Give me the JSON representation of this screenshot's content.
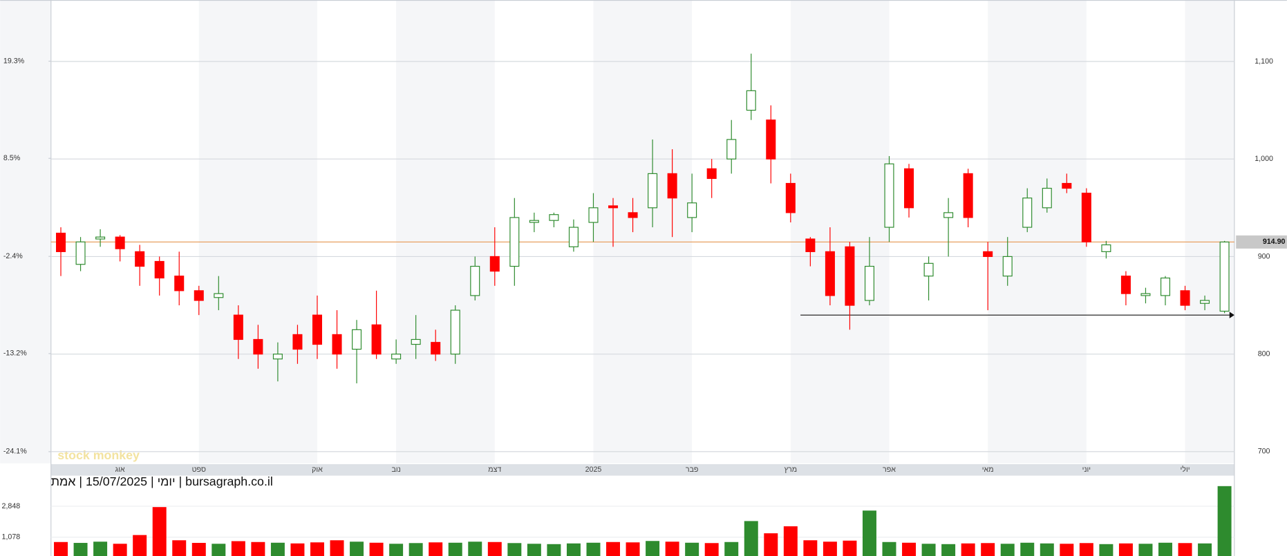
{
  "chart_data": {
    "type": "candlestick",
    "subtitle": "יומי | 15/07/2025 | אמת | bursagraph.co.il",
    "watermark": "stock monkey",
    "categories": [
      null,
      null,
      null,
      "אוג",
      null,
      null,
      null,
      "ספט",
      null,
      null,
      null,
      null,
      null,
      "אוק",
      null,
      null,
      null,
      "נוב",
      null,
      null,
      null,
      null,
      "דצמ",
      null,
      null,
      null,
      null,
      "2025",
      null,
      null,
      null,
      null,
      "פבר",
      null,
      null,
      null,
      null,
      "מרץ",
      null,
      null,
      null,
      null,
      "אפר",
      null,
      null,
      null,
      null,
      "מאי",
      null,
      null,
      null,
      null,
      "יוני",
      null,
      null,
      null,
      null,
      "יולי",
      null,
      null
    ],
    "open": [
      924,
      892,
      918,
      920,
      905,
      895,
      880,
      865,
      858,
      840,
      815,
      795,
      820,
      840,
      820,
      805,
      830,
      795,
      810,
      812,
      800,
      860,
      900,
      890,
      935,
      937,
      910,
      935,
      952,
      945,
      950,
      985,
      940,
      990,
      1000,
      1050,
      1040,
      975,
      918,
      905,
      910,
      855,
      930,
      990,
      880,
      940,
      985,
      905,
      880,
      930,
      950,
      975,
      965,
      905,
      880,
      860,
      860,
      865,
      852,
      844
    ],
    "high": [
      930,
      920,
      928,
      922,
      912,
      900,
      905,
      870,
      880,
      850,
      830,
      812,
      830,
      860,
      845,
      835,
      865,
      815,
      840,
      825,
      850,
      900,
      930,
      960,
      945,
      945,
      938,
      965,
      960,
      960,
      1020,
      1010,
      985,
      1000,
      1040,
      1108,
      1055,
      985,
      920,
      930,
      915,
      920,
      1003,
      995,
      900,
      960,
      990,
      915,
      920,
      970,
      980,
      985,
      970,
      916,
      885,
      868,
      880,
      870,
      860,
      916
    ],
    "low": [
      880,
      885,
      910,
      895,
      870,
      860,
      850,
      840,
      845,
      795,
      785,
      772,
      790,
      795,
      785,
      770,
      795,
      790,
      795,
      793,
      790,
      855,
      870,
      870,
      925,
      930,
      905,
      915,
      910,
      925,
      930,
      920,
      925,
      960,
      985,
      1040,
      975,
      935,
      890,
      850,
      825,
      850,
      915,
      940,
      855,
      900,
      930,
      845,
      870,
      925,
      945,
      965,
      910,
      898,
      850,
      852,
      850,
      845,
      845,
      842
    ],
    "close": [
      905,
      915,
      920,
      908,
      890,
      878,
      865,
      855,
      862,
      815,
      800,
      800,
      805,
      810,
      800,
      825,
      800,
      800,
      815,
      800,
      845,
      890,
      885,
      940,
      937,
      943,
      930,
      950,
      950,
      940,
      985,
      960,
      955,
      980,
      1020,
      1070,
      1000,
      945,
      905,
      860,
      850,
      890,
      995,
      950,
      893,
      945,
      940,
      900,
      900,
      960,
      970,
      970,
      915,
      912,
      862,
      862,
      878,
      850,
      855,
      914.9
    ],
    "volume": [
      800,
      750,
      820,
      700,
      1200,
      2800,
      900,
      750,
      700,
      850,
      800,
      760,
      720,
      780,
      900,
      820,
      760,
      700,
      740,
      780,
      760,
      820,
      800,
      740,
      700,
      680,
      720,
      760,
      800,
      780,
      860,
      820,
      760,
      740,
      800,
      2000,
      1300,
      1700,
      900,
      820,
      880,
      2600,
      800,
      760,
      700,
      680,
      720,
      740,
      700,
      760,
      720,
      700,
      740,
      680,
      720,
      700,
      760,
      740,
      720,
      4000
    ],
    "up_color": "#2e8b2e",
    "down_color": "#ff0000",
    "ylim": [
      688,
      1163
    ],
    "yticks": [
      {
        "value": 1100,
        "label": "1,100"
      },
      {
        "value": 1000,
        "label": "1,000"
      },
      900,
      800,
      700
    ],
    "y2lim": [
      -25.4,
      26.1
    ],
    "y2ticks": [
      {
        "value": 19.3,
        "label": "19.3%"
      },
      {
        "value": 8.5,
        "label": "8.5%"
      },
      {
        "value": -2.4,
        "label": "-2.4%"
      },
      {
        "value": -13.2,
        "label": "-13.2%"
      },
      {
        "value": -24.1,
        "label": "-24.1%"
      }
    ],
    "volume_ylim": [
      0,
      4600
    ],
    "volume_yticks": [
      {
        "value": 2848,
        "label": "2,848"
      },
      {
        "value": 1078,
        "label": "1,078"
      }
    ],
    "last_price": {
      "value": 914.9,
      "label": "914.90",
      "color": "#e8a060"
    },
    "support_line": {
      "value": 840,
      "start": 38
    },
    "grid": true
  }
}
